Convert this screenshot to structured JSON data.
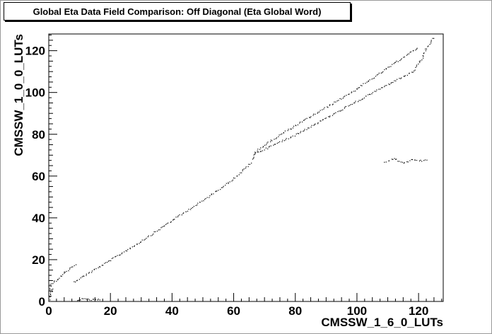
{
  "chart_data": {
    "type": "scatter",
    "title": "Global Eta Data Field Comparison: Off Diagonal (Eta Global Word)",
    "xlabel": "CMSSW_1_6_0_LUTs",
    "ylabel": "CMSSW_1_0_0_LUTs",
    "xlim": [
      0,
      128
    ],
    "ylim": [
      0,
      128
    ],
    "x_ticks": [
      0,
      20,
      40,
      60,
      80,
      100,
      120
    ],
    "y_ticks": [
      0,
      20,
      40,
      60,
      80,
      100,
      120
    ],
    "grid": false,
    "legend": "none",
    "marker_color": "#000000",
    "series": [
      {
        "points": [
          [
            8,
            9.5
          ],
          [
            20,
            20
          ],
          [
            30,
            29
          ],
          [
            40,
            39
          ],
          [
            50,
            48.5
          ],
          [
            60,
            59
          ],
          [
            66,
            67
          ]
        ]
      },
      {
        "points": [
          [
            66,
            68
          ],
          [
            67,
            72
          ],
          [
            75,
            80
          ],
          [
            90,
            93
          ],
          [
            100,
            102
          ],
          [
            110,
            112
          ],
          [
            120,
            122
          ]
        ]
      },
      {
        "points": [
          [
            67,
            71
          ],
          [
            80,
            80
          ],
          [
            90,
            88
          ],
          [
            100,
            96
          ],
          [
            110,
            104
          ],
          [
            118,
            110
          ],
          [
            121,
            116
          ],
          [
            122,
            120
          ],
          [
            125,
            127
          ]
        ]
      },
      {
        "points": [
          [
            0.1,
            3
          ],
          [
            0.5,
            8
          ],
          [
            1,
            9
          ],
          [
            3,
            11
          ],
          [
            5,
            14
          ],
          [
            7,
            16
          ],
          [
            9,
            18
          ]
        ]
      },
      {
        "points": [
          [
            0.2,
            1
          ],
          [
            0.5,
            3
          ],
          [
            0.8,
            5
          ],
          [
            1,
            7
          ]
        ]
      },
      {
        "points": [
          [
            9,
            1
          ],
          [
            11,
            1.3
          ],
          [
            13,
            1
          ],
          [
            15,
            1.2
          ],
          [
            17,
            1
          ]
        ]
      },
      {
        "points": [
          [
            109,
            67
          ],
          [
            112,
            68.5
          ],
          [
            115,
            66.5
          ],
          [
            118,
            68
          ],
          [
            121,
            67.5
          ],
          [
            123,
            68.2
          ]
        ]
      }
    ]
  }
}
